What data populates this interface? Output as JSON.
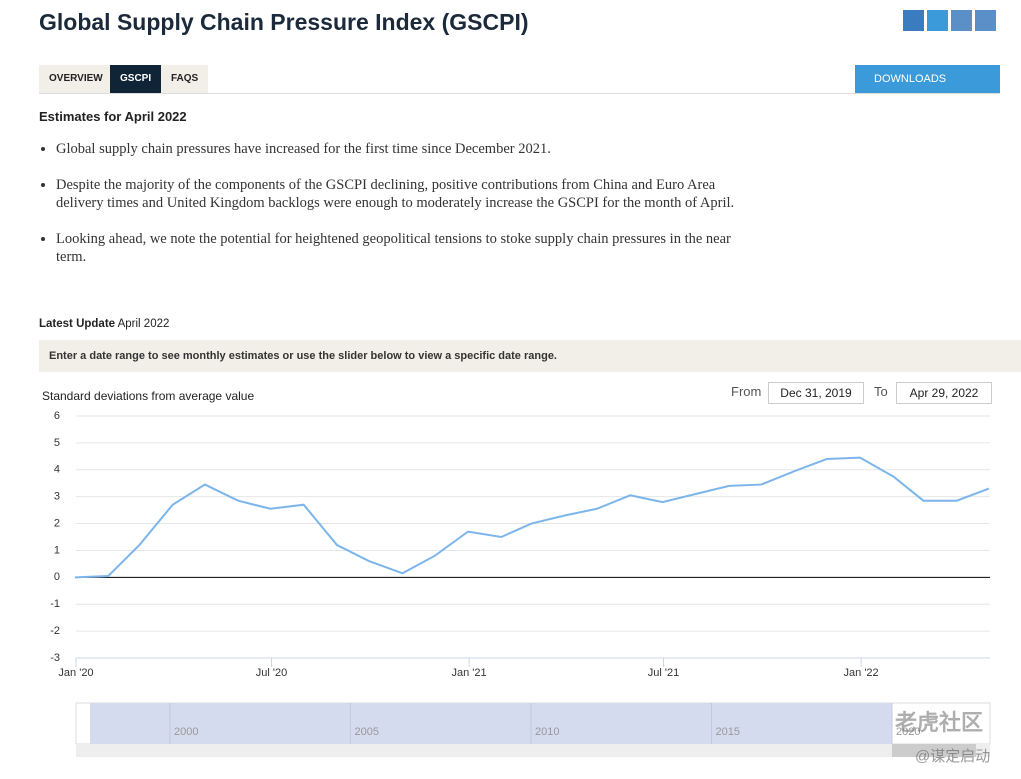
{
  "header": {
    "title": "Global Supply Chain Pressure Index (GSCPI)"
  },
  "tabs": [
    "OVERVIEW",
    "GSCPI",
    "FAQS"
  ],
  "downloads": "DOWNLOADS",
  "estimates": {
    "heading": "Estimates for April 2022",
    "bullets": [
      "Global supply chain pressures have increased for the first time since December 2021.",
      "Despite the majority of the components of the GSCPI declining, positive contributions from China and Euro Area delivery times and United Kingdom backlogs were enough to moderately increase the GSCPI for the month of April.",
      "Looking ahead, we note the potential for heightened geopolitical tensions to stoke supply chain pressures in the near term."
    ]
  },
  "latest_update": {
    "label": "Latest Update",
    "value": "April 2022"
  },
  "instruction": "Enter a date range to see monthly estimates or use the slider below to view a specific date range.",
  "range": {
    "from_label": "From",
    "from": "Dec 31, 2019",
    "to_label": "To",
    "to": "Apr 29, 2022"
  },
  "chart": {
    "type": "line",
    "ylabel": "Standard deviations from average value",
    "color": "#7cb5ec",
    "x": [
      "2019-12-31",
      "2020-01-31",
      "2020-02-29",
      "2020-03-31",
      "2020-04-30",
      "2020-05-31",
      "2020-06-30",
      "2020-07-31",
      "2020-08-31",
      "2020-09-30",
      "2020-10-31",
      "2020-11-30",
      "2020-12-31",
      "2021-01-31",
      "2021-02-28",
      "2021-03-31",
      "2021-04-30",
      "2021-05-31",
      "2021-06-30",
      "2021-07-31",
      "2021-08-31",
      "2021-09-30",
      "2021-10-31",
      "2021-11-30",
      "2021-12-31",
      "2022-01-31",
      "2022-02-28",
      "2022-03-31",
      "2022-04-30"
    ],
    "values": [
      0.0,
      0.05,
      1.2,
      2.7,
      3.45,
      2.85,
      2.55,
      2.7,
      1.2,
      0.6,
      0.15,
      0.8,
      1.7,
      1.5,
      2.0,
      2.3,
      2.55,
      3.05,
      2.8,
      3.1,
      3.4,
      3.45,
      3.95,
      4.4,
      4.45,
      3.75,
      2.85,
      2.85,
      3.3
    ],
    "xlim": [
      "2020-01-01",
      "2022-05-01"
    ],
    "xticks": [
      {
        "value": "2020-01-01",
        "label": "Jan '20"
      },
      {
        "value": "2020-07-01",
        "label": "Jul '20"
      },
      {
        "value": "2021-01-01",
        "label": "Jan '21"
      },
      {
        "value": "2021-07-01",
        "label": "Jul '21"
      },
      {
        "value": "2022-01-01",
        "label": "Jan '22"
      }
    ],
    "ylim": [
      -3,
      6
    ],
    "yticks": [
      -3,
      -2,
      -1,
      0,
      1,
      2,
      3,
      4,
      5,
      6
    ],
    "grid": true
  },
  "navigator": {
    "years": [
      "2000",
      "2005",
      "2010",
      "2015",
      "2020"
    ]
  },
  "watermark": [
    "老虎社区",
    "@谋定启动"
  ]
}
